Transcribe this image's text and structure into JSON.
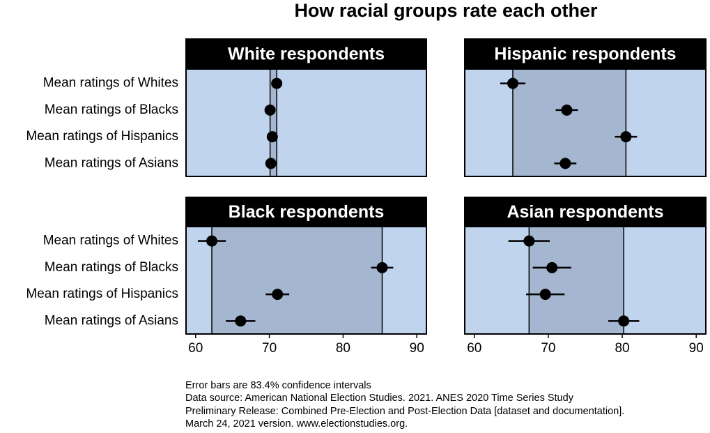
{
  "title": "How racial groups rate each other",
  "notes": [
    "Error bars are 83.4% confidence intervals",
    "Data source: American National Election Studies. 2021. ANES 2020 Time Series Study",
    "Preliminary Release: Combined Pre-Election and Post-Election Data [dataset and documentation].",
    "March 24, 2021 version. www.electionstudies.org."
  ],
  "chart_data": [
    {
      "type": "dot",
      "title": "White respondents",
      "categories": [
        "Mean ratings of Whites",
        "Mean ratings of Blacks",
        "Mean ratings of Hispanics",
        "Mean ratings of Asians"
      ],
      "values": [
        71.0,
        70.1,
        70.4,
        70.2
      ],
      "errors": [
        0.4,
        0.4,
        0.4,
        0.4
      ],
      "color": "#000000",
      "xlim": [
        58.7,
        91.3
      ]
    },
    {
      "type": "dot",
      "title": "Hispanic respondents",
      "values": [
        65.2,
        72.5,
        80.5,
        72.3
      ],
      "errors": [
        1.7,
        1.5,
        1.5,
        1.5
      ],
      "color": "#000000",
      "xlim": [
        58.7,
        91.3
      ]
    },
    {
      "type": "dot",
      "title": "Black respondents",
      "categories": [
        "Mean ratings of Whites",
        "Mean ratings of Blacks",
        "Mean ratings of Hispanics",
        "Mean ratings of Asians"
      ],
      "values": [
        62.2,
        85.3,
        71.1,
        66.1
      ],
      "errors": [
        1.9,
        1.5,
        1.6,
        2.0
      ],
      "color": "#000000",
      "xlim": [
        58.7,
        91.3
      ],
      "xticks": [
        60,
        70,
        80,
        90
      ]
    },
    {
      "type": "dot",
      "title": "Asian respondents",
      "values": [
        67.4,
        70.5,
        69.6,
        80.2
      ],
      "errors": [
        2.8,
        2.6,
        2.6,
        2.1
      ],
      "color": "#000000",
      "xlim": [
        58.7,
        91.3
      ],
      "xticks": [
        60,
        70,
        80,
        90
      ]
    }
  ]
}
